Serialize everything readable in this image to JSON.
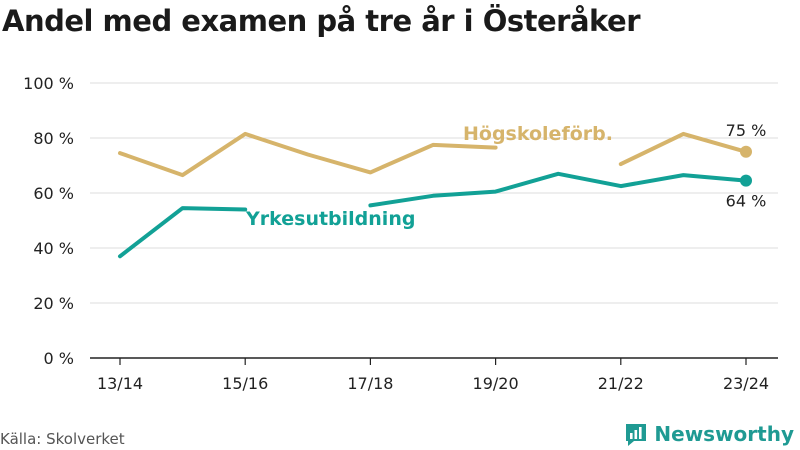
{
  "title": "Andel med examen på tre år i Österåker",
  "source": "Källa: Skolverket",
  "brand": {
    "name": "Newsworthy",
    "color": "#1f9a93",
    "icon": "bar-chart-logo-icon"
  },
  "chart_data": {
    "type": "line",
    "title": "Andel med examen på tre år i Österåker",
    "categories": [
      "13/14",
      "14/15",
      "15/16",
      "16/17",
      "17/18",
      "18/19",
      "19/20",
      "20/21",
      "21/22",
      "22/23",
      "23/24"
    ],
    "x_tick_labels": [
      "13/14",
      "15/16",
      "17/18",
      "19/20",
      "21/22",
      "23/24"
    ],
    "y_ticks": [
      {
        "value": 0,
        "label": "0 %"
      },
      {
        "value": 20,
        "label": "20 %"
      },
      {
        "value": 40,
        "label": "40 %"
      },
      {
        "value": 60,
        "label": "60 %"
      },
      {
        "value": 80,
        "label": "80 %"
      },
      {
        "value": 100,
        "label": "100 %"
      }
    ],
    "ylim": [
      0,
      100
    ],
    "xlabel": "",
    "ylabel": "",
    "grid": true,
    "series": [
      {
        "name": "Högskoleförb.",
        "color": "#d6b46b",
        "values": [
          74.5,
          66.5,
          81.5,
          74,
          67.5,
          77.5,
          76.5,
          null,
          70.5,
          81.5,
          75
        ],
        "end_label": "75 %"
      },
      {
        "name": "Yrkesutbildning",
        "color": "#12a196",
        "values": [
          37,
          54.5,
          54,
          null,
          55.5,
          59,
          60.5,
          67,
          62.5,
          66.5,
          64.5
        ],
        "end_label": "64 %"
      }
    ]
  }
}
